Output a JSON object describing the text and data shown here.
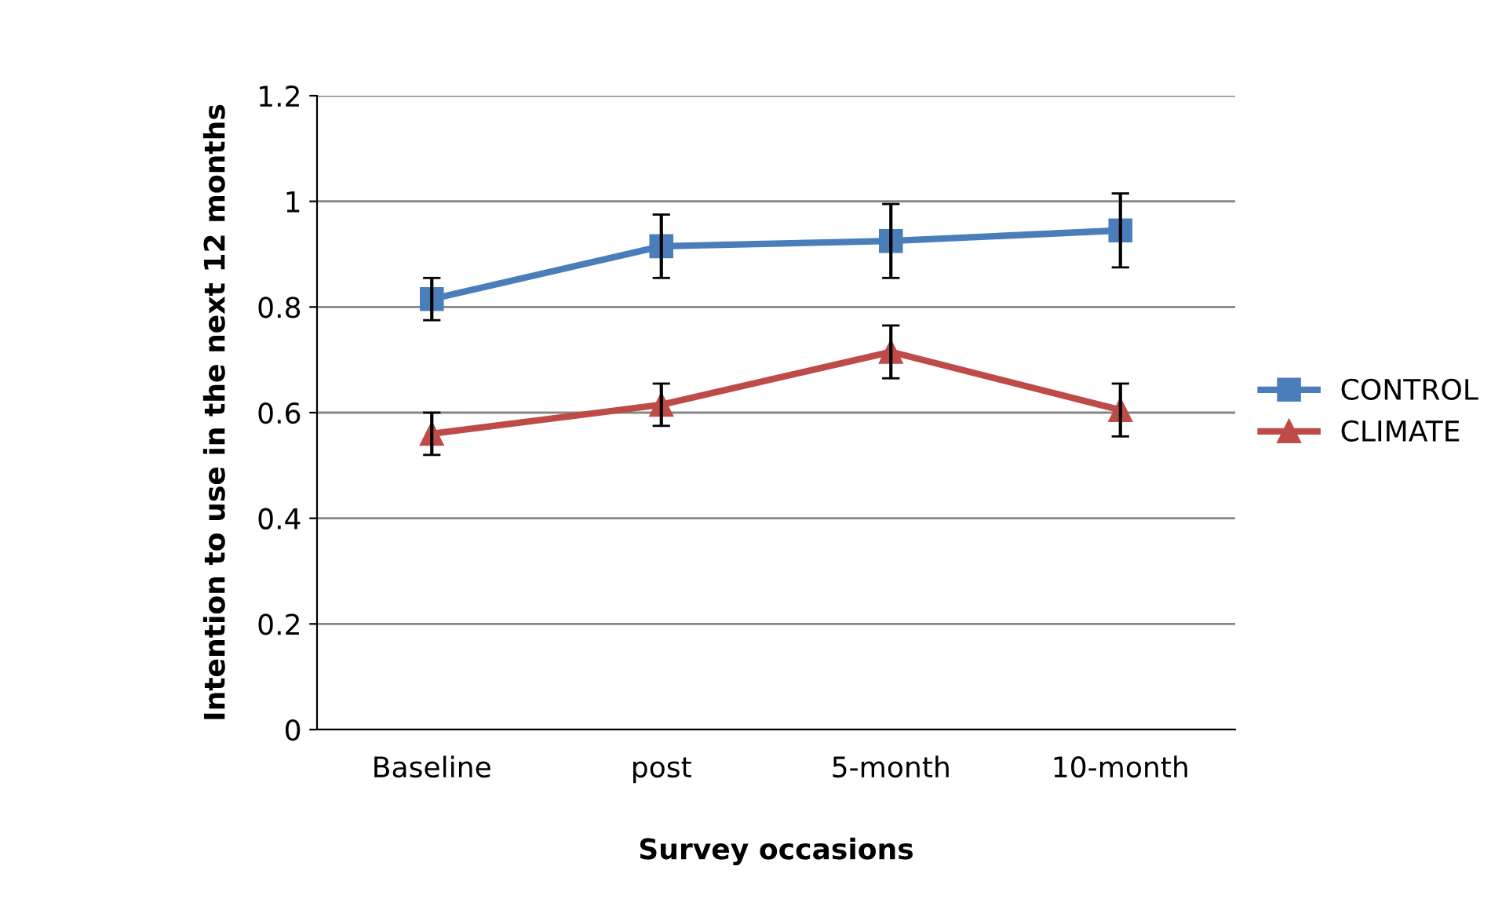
{
  "chart_data": {
    "type": "line",
    "xlabel": "Survey occasions",
    "ylabel": "Intention to use in the next 12 months",
    "categories": [
      "Baseline",
      "post",
      "5-month",
      "10-month"
    ],
    "series": [
      {
        "name": "CONTROL",
        "color": "#4a7ebb",
        "marker": "square",
        "values": [
          0.815,
          0.915,
          0.925,
          0.945
        ],
        "errors": [
          0.04,
          0.06,
          0.07,
          0.07
        ]
      },
      {
        "name": "CLIMATE",
        "color": "#be4b48",
        "marker": "triangle",
        "values": [
          0.56,
          0.615,
          0.715,
          0.605
        ],
        "errors": [
          0.04,
          0.04,
          0.05,
          0.05
        ]
      }
    ],
    "ylim": [
      0,
      1.2
    ],
    "yticks": [
      0,
      0.2,
      0.4,
      0.6,
      0.8,
      1,
      1.2
    ],
    "grid": "y",
    "legend": "right"
  }
}
